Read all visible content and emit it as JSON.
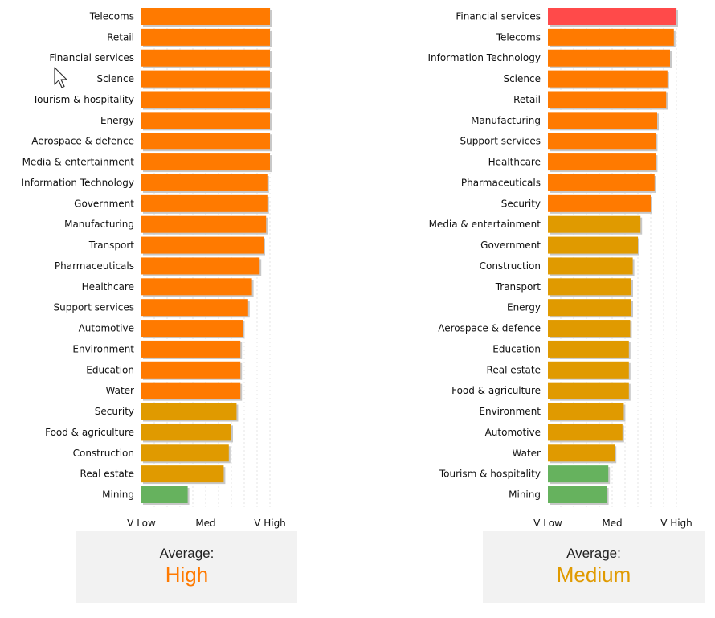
{
  "colors": {
    "high": "#ff7a00",
    "medium": "#e09a00",
    "low": "#66b25e",
    "very_high": "#ff4a4a",
    "grid": "#e4e4e4",
    "bar_shadow": "#c8c8c8"
  },
  "chart_data": [
    {
      "type": "bar",
      "orientation": "horizontal",
      "x_ticks": [
        "V Low",
        "Med",
        "V High"
      ],
      "xlim": [
        0,
        100
      ],
      "grid": true,
      "categories": [
        "Telecoms",
        "Retail",
        "Financial services",
        "Science",
        "Tourism & hospitality",
        "Energy",
        "Aerospace & defence",
        "Media & entertainment",
        "Information Technology",
        "Government",
        "Manufacturing",
        "Transport",
        "Pharmaceuticals",
        "Healthcare",
        "Support services",
        "Automotive",
        "Environment",
        "Education",
        "Water",
        "Security",
        "Food & agriculture",
        "Construction",
        "Real estate",
        "Mining"
      ],
      "values": [
        100,
        100,
        100,
        100,
        100,
        100,
        100,
        100,
        98,
        98,
        97,
        95,
        92,
        86,
        83,
        79,
        77,
        77,
        77,
        74,
        70,
        68,
        64,
        36
      ],
      "levels": [
        "high",
        "high",
        "high",
        "high",
        "high",
        "high",
        "high",
        "high",
        "high",
        "high",
        "high",
        "high",
        "high",
        "high",
        "high",
        "high",
        "high",
        "high",
        "high",
        "medium",
        "medium",
        "medium",
        "medium",
        "low"
      ]
    },
    {
      "type": "bar",
      "orientation": "horizontal",
      "x_ticks": [
        "V Low",
        "Med",
        "V High"
      ],
      "xlim": [
        0,
        100
      ],
      "grid": true,
      "categories": [
        "Financial services",
        "Telecoms",
        "Information Technology",
        "Science",
        "Retail",
        "Manufacturing",
        "Support services",
        "Healthcare",
        "Pharmaceuticals",
        "Security",
        "Media & entertainment",
        "Government",
        "Construction",
        "Transport",
        "Energy",
        "Aerospace & defence",
        "Education",
        "Real estate",
        "Food & agriculture",
        "Environment",
        "Automotive",
        "Water",
        "Tourism & hospitality",
        "Mining"
      ],
      "values": [
        100,
        98,
        95,
        93,
        92,
        85,
        84,
        84,
        83,
        80,
        72,
        70,
        66,
        65,
        65,
        64,
        63,
        63,
        63,
        59,
        58,
        52,
        47,
        46
      ],
      "levels": [
        "very_high",
        "high",
        "high",
        "high",
        "high",
        "high",
        "high",
        "high",
        "high",
        "high",
        "medium",
        "medium",
        "medium",
        "medium",
        "medium",
        "medium",
        "medium",
        "medium",
        "medium",
        "medium",
        "medium",
        "medium",
        "low",
        "low"
      ]
    }
  ],
  "summaries": [
    {
      "label": "Average:",
      "value": "High",
      "level": "high"
    },
    {
      "label": "Average:",
      "value": "Medium",
      "level": "medium"
    }
  ]
}
